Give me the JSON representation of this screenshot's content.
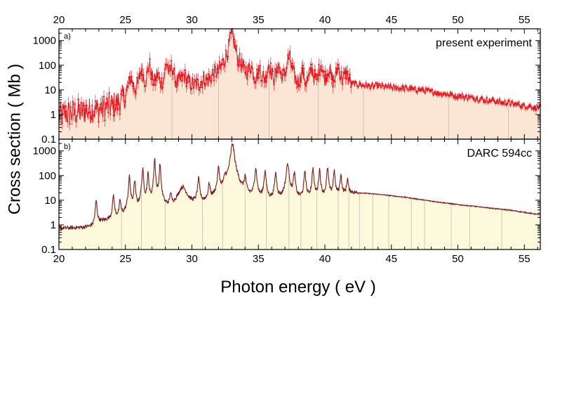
{
  "chart_data": {
    "type": "line",
    "xlabel": "Photon energy  ( eV )",
    "ylabel": "Cross section  ( Mb )",
    "x_range": [
      20,
      56.2
    ],
    "x_ticks": [
      20,
      25,
      30,
      35,
      40,
      45,
      50,
      55
    ],
    "y_scale": "log",
    "y_range": [
      0.1,
      3000
    ],
    "y_ticks": [
      0.1,
      1,
      10,
      100,
      1000
    ],
    "panels": [
      {
        "label": "a)",
        "title": "present experiment",
        "line_color": "#e8141b",
        "fill_color": "#fbe6d6",
        "style": "points-with-errorbars",
        "baseline": [
          [
            20,
            0.5
          ],
          [
            24,
            0.8
          ],
          [
            26,
            2
          ],
          [
            28,
            3
          ],
          [
            30,
            3.5
          ],
          [
            32,
            3
          ],
          [
            34,
            4
          ],
          [
            36,
            4
          ],
          [
            38,
            5
          ],
          [
            40,
            6
          ],
          [
            42,
            14
          ],
          [
            44,
            13
          ],
          [
            46,
            11
          ],
          [
            48,
            8
          ],
          [
            50,
            5.5
          ],
          [
            52,
            3.8
          ],
          [
            54,
            2.6
          ],
          [
            56.2,
            1.7
          ]
        ],
        "peaks": [
          {
            "x": 25.4,
            "y": 25,
            "w": 0.15
          },
          {
            "x": 26.2,
            "y": 60,
            "w": 0.12
          },
          {
            "x": 26.8,
            "y": 90,
            "w": 0.12
          },
          {
            "x": 27.4,
            "y": 35,
            "w": 0.1
          },
          {
            "x": 28.1,
            "y": 110,
            "w": 0.1
          },
          {
            "x": 28.5,
            "y": 80,
            "w": 0.1
          },
          {
            "x": 29.4,
            "y": 25,
            "w": 0.35
          },
          {
            "x": 30.9,
            "y": 12,
            "w": 0.2
          },
          {
            "x": 31.7,
            "y": 18,
            "w": 0.15
          },
          {
            "x": 32.4,
            "y": 30,
            "w": 0.15
          },
          {
            "x": 33.0,
            "y": 1500,
            "w": 0.18
          },
          {
            "x": 34.4,
            "y": 60,
            "w": 0.15
          },
          {
            "x": 35.1,
            "y": 50,
            "w": 0.12
          },
          {
            "x": 35.8,
            "y": 100,
            "w": 0.12
          },
          {
            "x": 36.5,
            "y": 80,
            "w": 0.12
          },
          {
            "x": 37.3,
            "y": 200,
            "w": 0.15
          },
          {
            "x": 38.3,
            "y": 40,
            "w": 0.12
          },
          {
            "x": 39.0,
            "y": 60,
            "w": 0.12
          },
          {
            "x": 39.7,
            "y": 100,
            "w": 0.12
          },
          {
            "x": 40.3,
            "y": 60,
            "w": 0.12
          },
          {
            "x": 41.0,
            "y": 70,
            "w": 0.12
          },
          {
            "x": 41.6,
            "y": 40,
            "w": 0.12
          }
        ],
        "vlines": [
          28.5,
          32.0,
          35.8,
          39.5,
          42.9,
          49.3,
          53.8
        ]
      },
      {
        "label": "b)",
        "title": "DARC 594cc",
        "line_color": "#7a1c22",
        "fill_color": "#fcf9dc",
        "style": "line",
        "baseline": [
          [
            20,
            0.5
          ],
          [
            22.5,
            0.4
          ],
          [
            23,
            0.8
          ],
          [
            24,
            1
          ],
          [
            26,
            1.5
          ],
          [
            28,
            2
          ],
          [
            30,
            3
          ],
          [
            32,
            4
          ],
          [
            34,
            5
          ],
          [
            36,
            6
          ],
          [
            38,
            8
          ],
          [
            40,
            11
          ],
          [
            42,
            20
          ],
          [
            44,
            17
          ],
          [
            46,
            13
          ],
          [
            48,
            9
          ],
          [
            50,
            6.5
          ],
          [
            52,
            5
          ],
          [
            54,
            3.8
          ],
          [
            56.2,
            2.5
          ]
        ],
        "peaks": [
          {
            "x": 22.8,
            "y": 9,
            "w": 0.05
          },
          {
            "x": 24.1,
            "y": 15,
            "w": 0.05
          },
          {
            "x": 24.6,
            "y": 8,
            "w": 0.05
          },
          {
            "x": 25.3,
            "y": 90,
            "w": 0.05
          },
          {
            "x": 25.7,
            "y": 60,
            "w": 0.05
          },
          {
            "x": 26.3,
            "y": 180,
            "w": 0.05
          },
          {
            "x": 26.7,
            "y": 120,
            "w": 0.05
          },
          {
            "x": 27.2,
            "y": 500,
            "w": 0.04
          },
          {
            "x": 27.6,
            "y": 320,
            "w": 0.04
          },
          {
            "x": 28.4,
            "y": 15,
            "w": 0.05
          },
          {
            "x": 29.3,
            "y": 30,
            "w": 0.3
          },
          {
            "x": 30.5,
            "y": 70,
            "w": 0.06
          },
          {
            "x": 31.3,
            "y": 40,
            "w": 0.06
          },
          {
            "x": 32.0,
            "y": 200,
            "w": 0.06
          },
          {
            "x": 32.5,
            "y": 60,
            "w": 0.08
          },
          {
            "x": 33.05,
            "y": 2000,
            "w": 0.1
          },
          {
            "x": 34.0,
            "y": 80,
            "w": 0.06
          },
          {
            "x": 34.8,
            "y": 200,
            "w": 0.06
          },
          {
            "x": 35.5,
            "y": 150,
            "w": 0.06
          },
          {
            "x": 36.3,
            "y": 120,
            "w": 0.06
          },
          {
            "x": 37.2,
            "y": 300,
            "w": 0.08
          },
          {
            "x": 37.7,
            "y": 120,
            "w": 0.06
          },
          {
            "x": 38.5,
            "y": 150,
            "w": 0.05
          },
          {
            "x": 39.1,
            "y": 200,
            "w": 0.05
          },
          {
            "x": 39.6,
            "y": 180,
            "w": 0.05
          },
          {
            "x": 40.2,
            "y": 200,
            "w": 0.05
          },
          {
            "x": 40.7,
            "y": 150,
            "w": 0.05
          },
          {
            "x": 41.2,
            "y": 100,
            "w": 0.05
          },
          {
            "x": 41.7,
            "y": 60,
            "w": 0.05
          }
        ],
        "vlines": [
          24.7,
          26.2,
          28.0,
          30.8,
          32.3,
          34.0,
          35.6,
          37.3,
          38.2,
          39.4,
          41.0,
          41.8,
          42.6,
          43.6,
          44.8,
          46.5,
          47.5,
          49.5,
          50.9,
          53.3
        ]
      }
    ]
  }
}
